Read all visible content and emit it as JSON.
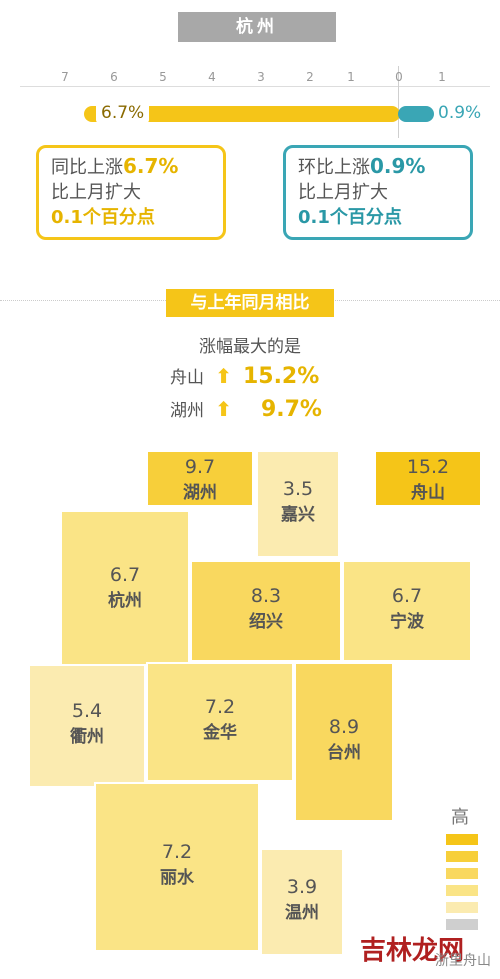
{
  "city_title": "杭州",
  "ticks": [
    "7",
    "6",
    "5",
    "4",
    "3",
    "2",
    "1",
    "0",
    "1"
  ],
  "bars": {
    "yoy_label": "6.7%",
    "mom_label": "0.9%"
  },
  "card_left": {
    "line1_prefix": "同比上涨",
    "line1_value": "6.7%",
    "line2": "比上月扩大",
    "line3": "0.1个百分点"
  },
  "card_right": {
    "line1_prefix": "环比上涨",
    "line1_value": "0.9%",
    "line2": "比上月扩大",
    "line3": "0.1个百分点"
  },
  "compare_title": "与上年同月相比",
  "max_label": "涨幅最大的是",
  "top_cities": [
    {
      "city": "舟山",
      "arrow": "⬆",
      "value": "15.2%"
    },
    {
      "city": "湖州",
      "arrow": "⬆",
      "value": "9.7%"
    }
  ],
  "legend": {
    "title": "高",
    "colors": [
      "#f5c518",
      "#f7cf3a",
      "#f9d85f",
      "#fae486",
      "#fbebb0",
      "#cfcfcf"
    ]
  },
  "watermark": {
    "big": "吉林龙网",
    "small": "浙里舟山"
  },
  "chart_data": {
    "type": "heatmap",
    "title": "与上年同月相比",
    "series": [
      {
        "name": "湖州",
        "value": 9.7,
        "label": "9.7"
      },
      {
        "name": "嘉兴",
        "value": 3.5,
        "label": "3.5"
      },
      {
        "name": "舟山",
        "value": 15.2,
        "label": "15.2"
      },
      {
        "name": "杭州",
        "value": 6.7,
        "label": "6.7"
      },
      {
        "name": "绍兴",
        "value": 8.3,
        "label": "8.3"
      },
      {
        "name": "宁波",
        "value": 6.7,
        "label": "6.7"
      },
      {
        "name": "衢州",
        "value": 5.4,
        "label": "5.4"
      },
      {
        "name": "金华",
        "value": 7.2,
        "label": "7.2"
      },
      {
        "name": "台州",
        "value": 8.9,
        "label": "8.9"
      },
      {
        "name": "丽水",
        "value": 7.2,
        "label": "7.2"
      },
      {
        "name": "温州",
        "value": 3.9,
        "label": "3.9"
      }
    ],
    "bar_values": {
      "hangzhou_yoy": 6.7,
      "hangzhou_mom": 0.9
    },
    "axis_range": [
      -7,
      1
    ]
  }
}
